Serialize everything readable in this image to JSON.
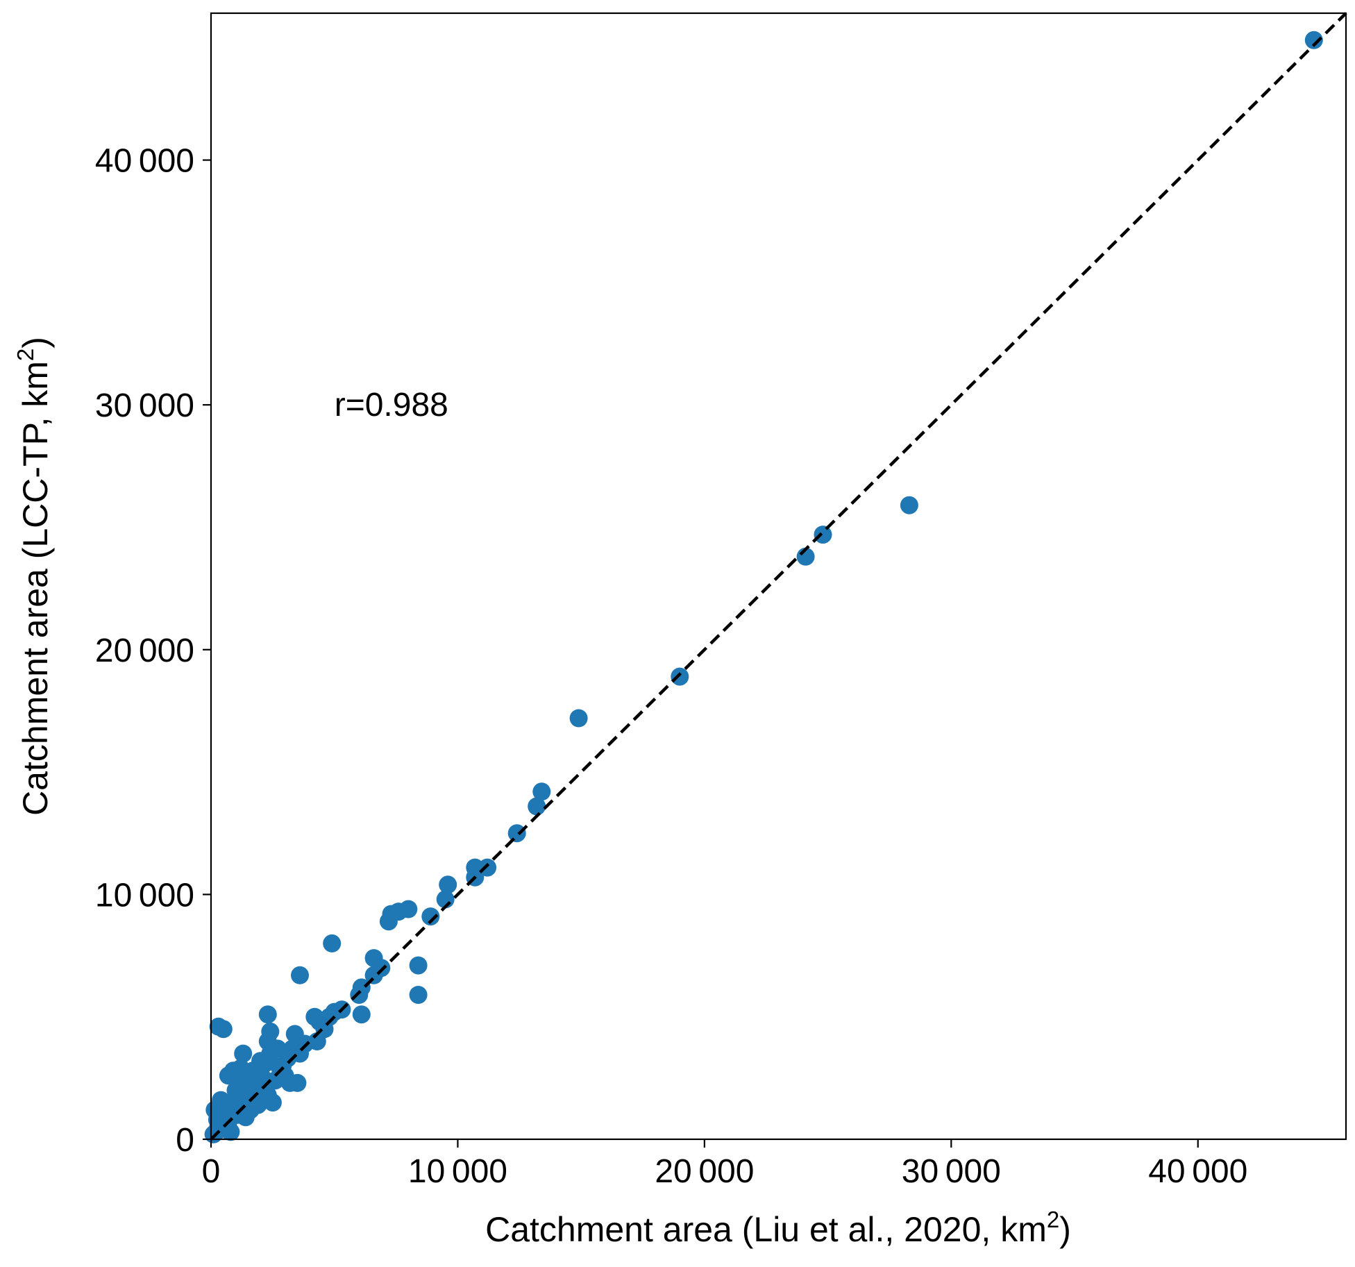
{
  "chart_data": {
    "type": "scatter",
    "title": "",
    "xlabel": "Catchment area (Liu et al., 2020, km",
    "xlabel_sup": "2",
    "xlabel_tail": ")",
    "ylabel": "Catchment area (LCC-TP, km",
    "ylabel_sup": "2",
    "ylabel_tail": ")",
    "xlim": [
      0,
      46000
    ],
    "ylim": [
      0,
      46000
    ],
    "x_ticks": [
      0,
      10000,
      20000,
      30000,
      40000
    ],
    "x_tick_labels": [
      "0",
      "10 000",
      "20 000",
      "30 000",
      "40 000"
    ],
    "y_ticks": [
      0,
      10000,
      20000,
      30000,
      40000
    ],
    "y_tick_labels": [
      "0",
      "10 000",
      "20 000",
      "30 000",
      "40 000"
    ],
    "grid": false,
    "legend": "none",
    "annotation": {
      "text": "r=0.988",
      "x": 5000,
      "y": 30000
    },
    "reference_line": {
      "style": "dashed",
      "color": "#000000",
      "from": [
        0,
        0
      ],
      "to": [
        46000,
        46000
      ]
    },
    "marker_color": "#1f77b4",
    "series": [
      {
        "points": [
          [
            44700,
            44900
          ],
          [
            28300,
            25900
          ],
          [
            24800,
            24700
          ],
          [
            24100,
            23800
          ],
          [
            19000,
            18900
          ],
          [
            14900,
            17200
          ],
          [
            13400,
            14200
          ],
          [
            13200,
            13600
          ],
          [
            12400,
            12500
          ],
          [
            11200,
            11100
          ],
          [
            10700,
            11100
          ],
          [
            10700,
            10700
          ],
          [
            9600,
            10400
          ],
          [
            9500,
            9800
          ],
          [
            8900,
            9100
          ],
          [
            8000,
            9400
          ],
          [
            7600,
            9300
          ],
          [
            7300,
            9200
          ],
          [
            7200,
            8900
          ],
          [
            8400,
            7100
          ],
          [
            8400,
            5900
          ],
          [
            6600,
            7400
          ],
          [
            6600,
            6700
          ],
          [
            6900,
            7000
          ],
          [
            6100,
            6200
          ],
          [
            6000,
            5900
          ],
          [
            6100,
            5100
          ],
          [
            5300,
            5300
          ],
          [
            5000,
            5200
          ],
          [
            4900,
            8000
          ],
          [
            4800,
            5000
          ],
          [
            4400,
            4800
          ],
          [
            4200,
            5000
          ],
          [
            4300,
            4000
          ],
          [
            3600,
            6700
          ],
          [
            3400,
            4300
          ],
          [
            3300,
            3700
          ],
          [
            3600,
            3500
          ],
          [
            3200,
            2300
          ],
          [
            3500,
            2300
          ],
          [
            2900,
            3000
          ],
          [
            2700,
            3700
          ],
          [
            2400,
            3500
          ],
          [
            2300,
            5100
          ],
          [
            2300,
            4000
          ],
          [
            2400,
            4400
          ],
          [
            2200,
            3100
          ],
          [
            2000,
            3200
          ],
          [
            2500,
            1500
          ],
          [
            2300,
            1800
          ],
          [
            2100,
            2500
          ],
          [
            1900,
            2300
          ],
          [
            1800,
            1500
          ],
          [
            1700,
            2800
          ],
          [
            1500,
            2100
          ],
          [
            1300,
            3500
          ],
          [
            1300,
            2300
          ],
          [
            1400,
            900
          ],
          [
            1200,
            1700
          ],
          [
            1000,
            1500
          ],
          [
            900,
            2800
          ],
          [
            800,
            1100
          ],
          [
            700,
            2600
          ],
          [
            600,
            1300
          ],
          [
            500,
            4500
          ],
          [
            300,
            4600
          ],
          [
            400,
            1000
          ],
          [
            300,
            600
          ],
          [
            200,
            300
          ],
          [
            100,
            200
          ],
          [
            600,
            400
          ],
          [
            800,
            300
          ],
          [
            1100,
            1000
          ],
          [
            1600,
            1200
          ],
          [
            1900,
            1400
          ],
          [
            2600,
            2400
          ],
          [
            2800,
            2900
          ],
          [
            3100,
            3300
          ],
          [
            3800,
            3900
          ],
          [
            4600,
            4500
          ],
          [
            150,
            1200
          ],
          [
            250,
            800
          ],
          [
            700,
            700
          ],
          [
            1000,
            2000
          ],
          [
            1200,
            2900
          ],
          [
            2000,
            1600
          ],
          [
            1500,
            1600
          ],
          [
            3000,
            2600
          ],
          [
            2200,
            2000
          ],
          [
            400,
            1600
          ]
        ]
      }
    ]
  }
}
